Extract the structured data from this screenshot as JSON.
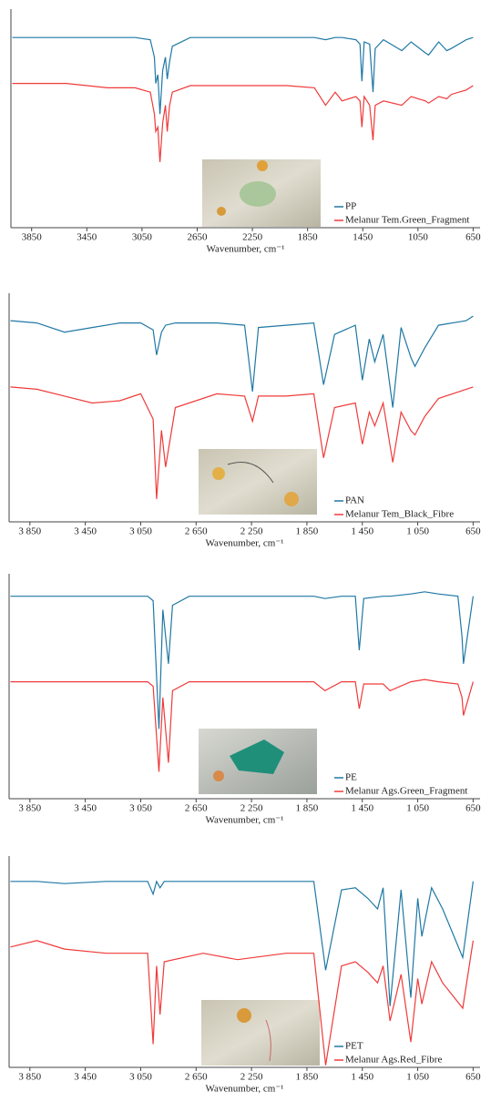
{
  "chart_data": [
    {
      "type": "line",
      "xlabel": "Wavenumber, cm⁻¹",
      "xlim": [
        4000,
        600
      ],
      "ylim": [
        0,
        100
      ],
      "xticks": [
        3850,
        3450,
        3050,
        2650,
        2250,
        1850,
        1450,
        1050,
        650
      ],
      "legend": "lower right",
      "x": [
        3990,
        3600,
        3300,
        3100,
        2990,
        2960,
        2950,
        2935,
        2920,
        2900,
        2880,
        2867,
        2850,
        2830,
        2700,
        2400,
        2000,
        1800,
        1720,
        1650,
        1600,
        1500,
        1470,
        1456,
        1440,
        1400,
        1376,
        1360,
        1300,
        1167,
        1100,
        997,
        973,
        900,
        841,
        808,
        700,
        650
      ],
      "series": [
        {
          "name": "PP",
          "color": "#1f78a4",
          "values": [
            87,
            87,
            87,
            87,
            86,
            78,
            66,
            70,
            52,
            72,
            78,
            68,
            76,
            83,
            87,
            87,
            87,
            87,
            86,
            87,
            87,
            86,
            84,
            67,
            85,
            84,
            62,
            82,
            86,
            81,
            85,
            80,
            79,
            85,
            81,
            82,
            86,
            87
          ]
        },
        {
          "name": "Melanur Tem.Green_Fragment",
          "color": "#f03a3a",
          "values": [
            66,
            66,
            64,
            64,
            62,
            52,
            44,
            46,
            30,
            48,
            56,
            44,
            56,
            62,
            65,
            65,
            65,
            64,
            56,
            62,
            58,
            60,
            58,
            46,
            60,
            56,
            40,
            56,
            58,
            56,
            60,
            58,
            57,
            60,
            59,
            61,
            63,
            65
          ]
        }
      ]
    },
    {
      "type": "line",
      "xlabel": "Wavenumber, cm⁻¹",
      "xlim": [
        4000,
        600
      ],
      "ylim": [
        0,
        100
      ],
      "xticks": [
        {
          "value": 3850,
          "label": "3 850"
        },
        {
          "value": 3450,
          "label": "3 450"
        },
        {
          "value": 3050,
          "label": "3 050"
        },
        {
          "value": 2650,
          "label": "2 650"
        },
        {
          "value": 2250,
          "label": "2 250"
        },
        {
          "value": 1850,
          "label": "1 850"
        },
        {
          "value": 1450,
          "label": "1 450"
        },
        {
          "value": 1050,
          "label": "1 050"
        },
        650
      ],
      "legend": "lower right",
      "x": [
        3990,
        3800,
        3600,
        3400,
        3200,
        3050,
        2960,
        2935,
        2900,
        2870,
        2800,
        2500,
        2300,
        2243,
        2200,
        2000,
        1800,
        1730,
        1650,
        1500,
        1450,
        1400,
        1360,
        1300,
        1230,
        1170,
        1100,
        1070,
        1000,
        900,
        700,
        650
      ],
      "series": [
        {
          "name": "PAN",
          "color": "#1f78a4",
          "values": [
            88,
            87,
            83,
            85,
            87,
            87,
            84,
            73,
            83,
            86,
            87,
            87,
            86,
            57,
            85,
            86,
            87,
            60,
            82,
            86,
            62,
            80,
            70,
            82,
            50,
            85,
            72,
            68,
            76,
            86,
            88,
            90
          ]
        },
        {
          "name": "Melanur Tem_Black_Fibre",
          "color": "#f03a3a",
          "values": [
            59,
            58,
            55,
            52,
            53,
            56,
            45,
            10,
            40,
            24,
            50,
            56,
            55,
            44,
            55,
            55,
            56,
            28,
            50,
            52,
            34,
            48,
            42,
            52,
            26,
            48,
            40,
            38,
            46,
            54,
            58,
            59
          ]
        }
      ]
    },
    {
      "type": "line",
      "xlabel": "Wavenumber, cm⁻¹",
      "xlim": [
        4000,
        600
      ],
      "ylim": [
        0,
        100
      ],
      "xticks": [
        {
          "value": 3850,
          "label": "3 850"
        },
        {
          "value": 3450,
          "label": "3 450"
        },
        {
          "value": 3050,
          "label": "3 050"
        },
        {
          "value": 2650,
          "label": "2 650"
        },
        {
          "value": 2250,
          "label": "2 250"
        },
        {
          "value": 1850,
          "label": "1 850"
        },
        {
          "value": 1450,
          "label": "1 450"
        },
        {
          "value": 1050,
          "label": "1 050"
        },
        650
      ],
      "legend": "lower right",
      "x": [
        3990,
        3600,
        3200,
        3000,
        2960,
        2918,
        2890,
        2850,
        2820,
        2700,
        2300,
        1800,
        1720,
        1600,
        1500,
        1472,
        1440,
        1300,
        1250,
        1100,
        1000,
        900,
        760,
        730,
        720,
        650
      ],
      "series": [
        {
          "name": "PE",
          "color": "#1f78a4",
          "values": [
            90,
            90,
            90,
            90,
            88,
            31,
            84,
            60,
            86,
            90,
            90,
            90,
            89,
            90,
            90,
            66,
            89,
            90,
            90,
            91,
            92,
            91,
            90,
            72,
            60,
            90
          ]
        },
        {
          "name": "Melanur Ags.Green_Fragment",
          "color": "#f03a3a",
          "values": [
            52,
            52,
            52,
            52,
            50,
            12,
            45,
            16,
            48,
            52,
            52,
            52,
            48,
            52,
            52,
            40,
            51,
            51,
            48,
            52,
            53,
            52,
            51,
            45,
            37,
            52
          ]
        }
      ]
    },
    {
      "type": "line",
      "xlabel": "Wavenumber, cm⁻¹",
      "xlim": [
        4000,
        600
      ],
      "ylim": [
        0,
        100
      ],
      "xticks": [
        {
          "value": 3850,
          "label": "3 850"
        },
        {
          "value": 3450,
          "label": "3 450"
        },
        {
          "value": 3050,
          "label": "3 050"
        },
        {
          "value": 2650,
          "label": "2 650"
        },
        {
          "value": 2250,
          "label": "2 250"
        },
        {
          "value": 1850,
          "label": "1 850"
        },
        {
          "value": 1450,
          "label": "1 450"
        },
        {
          "value": 1050,
          "label": "1 050"
        },
        650
      ],
      "legend": "lower right",
      "x": [
        3990,
        3800,
        3600,
        3300,
        3000,
        2960,
        2935,
        2910,
        2880,
        2600,
        2350,
        2000,
        1800,
        1715,
        1600,
        1500,
        1410,
        1340,
        1300,
        1250,
        1170,
        1100,
        1050,
        1020,
        950,
        870,
        725,
        650
      ],
      "series": [
        {
          "name": "PET",
          "color": "#1f78a4",
          "values": [
            88,
            88,
            87,
            88,
            88,
            82,
            88,
            85,
            88,
            88,
            88,
            88,
            88,
            46,
            84,
            85,
            80,
            75,
            85,
            29,
            84,
            33,
            80,
            62,
            85,
            75,
            52,
            88
          ]
        },
        {
          "name": "Melanur Ags.Red_Fibre",
          "color": "#f03a3a",
          "values": [
            57,
            60,
            56,
            54,
            54,
            11,
            48,
            25,
            50,
            54,
            51,
            54,
            54,
            1,
            48,
            50,
            45,
            40,
            48,
            22,
            44,
            12,
            42,
            30,
            50,
            40,
            28,
            60
          ]
        }
      ]
    }
  ]
}
